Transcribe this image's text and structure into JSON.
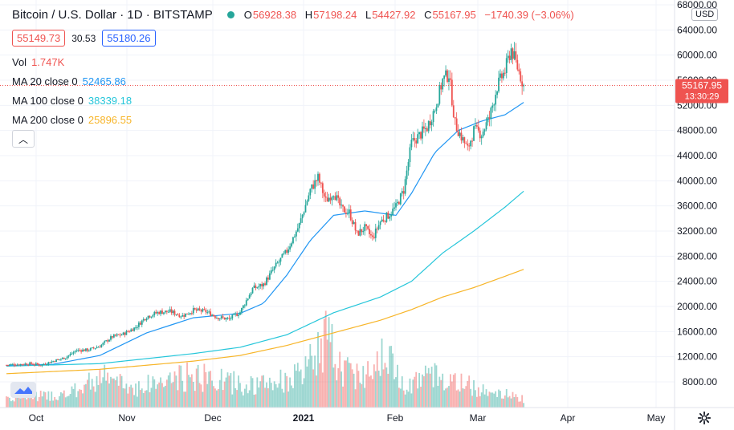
{
  "header": {
    "title": "Bitcoin / U.S. Dollar · 1D · BITSTAMP",
    "open_label": "O",
    "open": "56928.38",
    "high_label": "H",
    "high": "57198.24",
    "low_label": "L",
    "low": "54427.92",
    "close_label": "C",
    "close": "55167.95",
    "change": "−1740.39 (−3.06%)"
  },
  "trade": {
    "sell": "55149.73",
    "spread": "30.53",
    "buy": "55180.26"
  },
  "indicators": {
    "vol": {
      "label": "Vol",
      "value": "1.747K"
    },
    "ma20": {
      "label": "MA 20 close 0",
      "value": "52465.86",
      "color": "#2196f3"
    },
    "ma100": {
      "label": "MA 100 close 0",
      "value": "38339.18",
      "color": "#26c6da"
    },
    "ma200": {
      "label": "MA 200 close 0",
      "value": "25896.55",
      "color": "#f7b529"
    }
  },
  "price_scale": {
    "currency": "USD",
    "last_price": "55167.95",
    "countdown": "13:30:29"
  },
  "colors": {
    "up": "#26a69a",
    "down": "#ef5350"
  },
  "icons": {
    "collapse": "chevron-up-icon",
    "settings": "gear-icon",
    "logo": "tradingview-logo-icon"
  },
  "chart_data": {
    "type": "candlestick",
    "ylim": [
      4000,
      68000
    ],
    "y_ticks": [
      "68000.00",
      "64000.00",
      "60000.00",
      "56000.00",
      "52000.00",
      "48000.00",
      "44000.00",
      "40000.00",
      "36000.00",
      "32000.00",
      "28000.00",
      "24000.00",
      "20000.00",
      "16000.00",
      "12000.00",
      "8000.00"
    ],
    "x_ticks": [
      "Oct",
      "Nov",
      "Dec",
      "2021",
      "Feb",
      "Mar",
      "Apr",
      "May"
    ],
    "last_price": 55167.95,
    "close_path": [
      [
        0,
        10700
      ],
      [
        8,
        10800
      ],
      [
        15,
        10900
      ],
      [
        22,
        10700
      ],
      [
        30,
        11300
      ],
      [
        38,
        11900
      ],
      [
        45,
        13000
      ],
      [
        53,
        13100
      ],
      [
        60,
        13700
      ],
      [
        68,
        15200
      ],
      [
        75,
        15600
      ],
      [
        83,
        16700
      ],
      [
        90,
        18400
      ],
      [
        98,
        19100
      ],
      [
        105,
        19200
      ],
      [
        113,
        18500
      ],
      [
        120,
        19400
      ],
      [
        128,
        19200
      ],
      [
        135,
        18300
      ],
      [
        143,
        18000
      ],
      [
        150,
        19100
      ],
      [
        158,
        22800
      ],
      [
        165,
        23500
      ],
      [
        173,
        26500
      ],
      [
        180,
        28800
      ],
      [
        188,
        33000
      ],
      [
        195,
        38500
      ],
      [
        200,
        40500
      ],
      [
        205,
        36800
      ],
      [
        210,
        38200
      ],
      [
        215,
        35500
      ],
      [
        220,
        35000
      ],
      [
        225,
        31500
      ],
      [
        230,
        32500
      ],
      [
        235,
        30800
      ],
      [
        240,
        33500
      ],
      [
        245,
        34500
      ],
      [
        250,
        35800
      ],
      [
        255,
        38500
      ],
      [
        260,
        46000
      ],
      [
        265,
        47200
      ],
      [
        270,
        48500
      ],
      [
        275,
        51500
      ],
      [
        280,
        56000
      ],
      [
        284,
        57000
      ],
      [
        288,
        49000
      ],
      [
        292,
        47000
      ],
      [
        296,
        45000
      ],
      [
        300,
        48000
      ],
      [
        305,
        47500
      ],
      [
        310,
        50000
      ],
      [
        315,
        55000
      ],
      [
        320,
        57500
      ],
      [
        324,
        61000
      ],
      [
        328,
        58000
      ],
      [
        332,
        55168
      ]
    ],
    "ma20_path": [
      [
        0,
        10600
      ],
      [
        30,
        10800
      ],
      [
        60,
        12200
      ],
      [
        90,
        15800
      ],
      [
        120,
        18200
      ],
      [
        150,
        18900
      ],
      [
        165,
        20500
      ],
      [
        180,
        25000
      ],
      [
        195,
        30500
      ],
      [
        210,
        34500
      ],
      [
        230,
        35200
      ],
      [
        250,
        34500
      ],
      [
        260,
        38000
      ],
      [
        275,
        44500
      ],
      [
        290,
        48000
      ],
      [
        305,
        49500
      ],
      [
        320,
        50500
      ],
      [
        332,
        52466
      ]
    ],
    "ma100_path": [
      [
        0,
        10500
      ],
      [
        60,
        10900
      ],
      [
        120,
        12500
      ],
      [
        150,
        13500
      ],
      [
        180,
        15500
      ],
      [
        210,
        19000
      ],
      [
        240,
        21500
      ],
      [
        260,
        24000
      ],
      [
        280,
        28500
      ],
      [
        300,
        32000
      ],
      [
        320,
        35800
      ],
      [
        332,
        38339
      ]
    ],
    "ma200_path": [
      [
        0,
        9300
      ],
      [
        60,
        10000
      ],
      [
        120,
        11300
      ],
      [
        150,
        12200
      ],
      [
        180,
        13800
      ],
      [
        210,
        15800
      ],
      [
        240,
        17800
      ],
      [
        260,
        19500
      ],
      [
        280,
        21500
      ],
      [
        300,
        23000
      ],
      [
        320,
        24800
      ],
      [
        332,
        25897
      ]
    ],
    "volume_path": [
      [
        0,
        0.15
      ],
      [
        40,
        0.18
      ],
      [
        60,
        0.45
      ],
      [
        80,
        0.28
      ],
      [
        120,
        0.45
      ],
      [
        160,
        0.3
      ],
      [
        190,
        0.45
      ],
      [
        205,
        1.0
      ],
      [
        215,
        0.55
      ],
      [
        230,
        0.45
      ],
      [
        240,
        0.85
      ],
      [
        255,
        0.35
      ],
      [
        275,
        0.45
      ],
      [
        290,
        0.35
      ],
      [
        310,
        0.25
      ],
      [
        332,
        0.12
      ]
    ]
  }
}
